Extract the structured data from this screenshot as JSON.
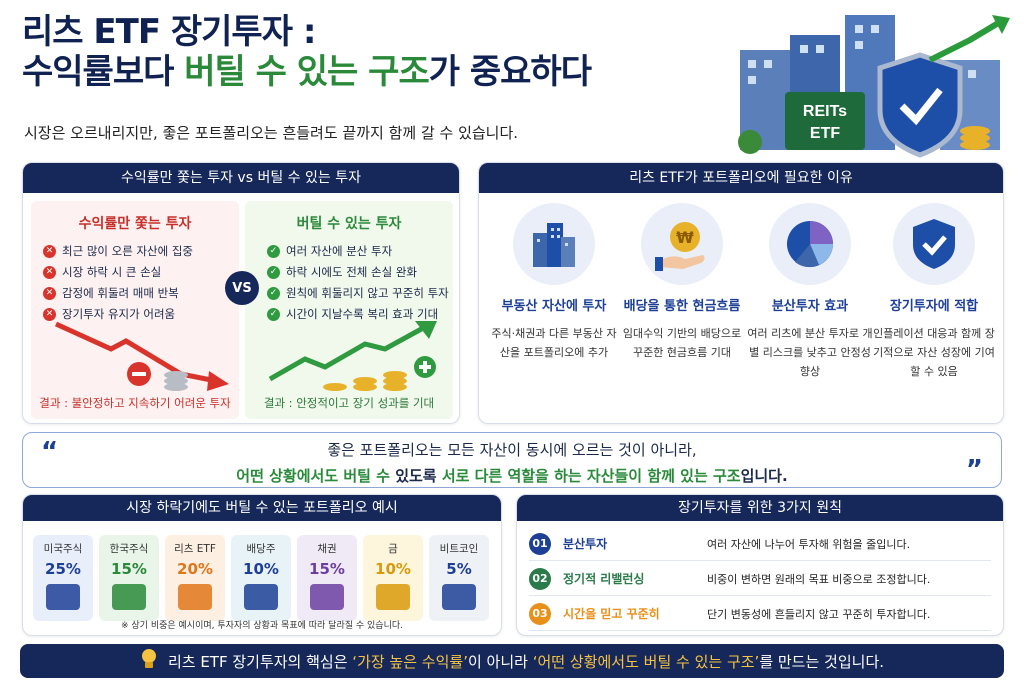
{
  "title": {
    "line1": "리츠 ETF 장기투자 :",
    "line2_a": "수익률보다 ",
    "line2_green": "버틸 수 있는 구조",
    "line2_b": "가 중요하다",
    "subtitle": "시장은 오르내리지만, 좋은 포트폴리오는 흔들려도 끝까지 함께 갈 수 있습니다."
  },
  "hero": {
    "sign_line1": "REITs",
    "sign_line2": "ETF"
  },
  "compare": {
    "header": "수익률만 쫓는 투자 vs 버틸 수 있는 투자",
    "vs": "VS",
    "bad": {
      "title": "수익률만 쫓는 투자",
      "items": [
        "최근 많이 오른 자산에 집중",
        "시장 하락 시 큰 손실",
        "감정에 휘둘려 매매 반복",
        "장기투자 유지가 어려움"
      ],
      "result": "결과 : 불안정하고 지속하기 어려운 투자"
    },
    "good": {
      "title": "버틸 수 있는 투자",
      "items": [
        "여러 자산에 분산 투자",
        "하락 시에도 전체 손실 완화",
        "원칙에 휘둘리지 않고 꾸준히 투자",
        "시간이 지날수록 복리 효과 기대"
      ],
      "result": "결과 : 안정적이고 장기 성과를 기대"
    }
  },
  "reasons": {
    "header": "리츠 ETF가 포트폴리오에 필요한 이유",
    "items": [
      {
        "title": "부동산 자산에 투자",
        "desc": "주식·채권과 다른 부동산 자산을 포트폴리오에 추가"
      },
      {
        "title": "배당을 통한 현금흐름",
        "desc": "임대수익 기반의 배당으로 꾸준한 현금흐름 기대",
        "coin": "₩"
      },
      {
        "title": "분산투자 효과",
        "desc": "여러 리츠에 분산 투자로 개별 리스크를 낮추고 안정성 향상"
      },
      {
        "title": "장기투자에 적합",
        "desc": "인플레이션 대응과 함께 장기적으로 자산 성장에 기여할 수 있음"
      }
    ]
  },
  "quote": {
    "open": "“",
    "close": "”",
    "line1": "좋은 포트폴리오는 모든 자산이 동시에 오르는 것이 아니라,",
    "line2_green1": "어떤 상황에서도 버틸 수 ",
    "line2_plain1": "있도록 ",
    "line2_green2": "서로 다른 역할을 하는 자산들이 함께 있는 구조",
    "line2_plain2": "입니다."
  },
  "portfolio": {
    "header": "시장 하락기에도 버틸 수 있는 포트폴리오 예시",
    "note": "※ 상기 비중은 예시이며, 투자자의 상황과 목표에 따라 달라질 수 있습니다.",
    "items": [
      {
        "label": "미국주식",
        "value": "25%",
        "color": "#1d3f96",
        "bg": "#e8eefa"
      },
      {
        "label": "한국주식",
        "value": "15%",
        "color": "#2a8a3a",
        "bg": "#eaf5ea"
      },
      {
        "label": "리츠 ETF",
        "value": "20%",
        "color": "#e0761a",
        "bg": "#fdf0e3"
      },
      {
        "label": "배당주",
        "value": "10%",
        "color": "#1d3f96",
        "bg": "#e8f3f8"
      },
      {
        "label": "채권",
        "value": "15%",
        "color": "#6b3fa0",
        "bg": "#f0eaf7"
      },
      {
        "label": "금",
        "value": "10%",
        "color": "#d99a0a",
        "bg": "#fdf5dc"
      },
      {
        "label": "비트코인",
        "value": "5%",
        "color": "#1d3f96",
        "bg": "#eef1f6"
      }
    ]
  },
  "principles": {
    "header": "장기투자를 위한 3가지 원칙",
    "items": [
      {
        "num": "01",
        "name": "분산투자",
        "desc": "여러 자산에 나누어 투자해 위험을 줄입니다.",
        "color": "#1d3f96"
      },
      {
        "num": "02",
        "name": "정기적 리밸런싱",
        "desc": "비중이 변하면 원래의 목표 비중으로 조정합니다.",
        "color": "#2a7a4a"
      },
      {
        "num": "03",
        "name": "시간을 믿고 꾸준히",
        "desc": "단기 변동성에 흔들리지 않고 꾸준히 투자합니다.",
        "color": "#e8901a"
      }
    ]
  },
  "footer": {
    "a": "리츠 ETF 장기투자의 핵심은 ",
    "q1": "‘가장 높은 수익률’",
    "b": "이 아니라 ",
    "q2": "‘어떤 상황에서도 버틸 수 있는 구조’",
    "c": "를 만드는 것입니다."
  }
}
